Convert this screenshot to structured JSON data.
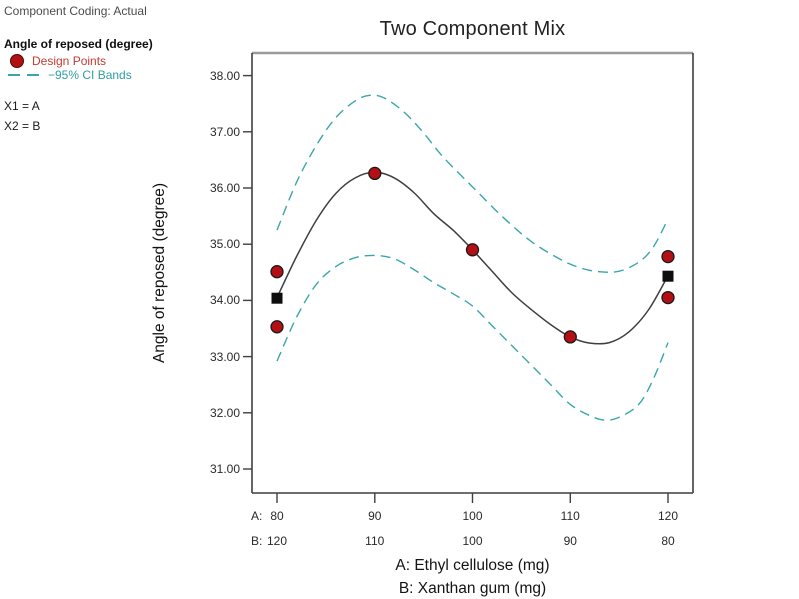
{
  "info_panel": {
    "coding_label": "Component Coding: Actual",
    "response_label": "Angle of reposed (degree)",
    "legend": {
      "design_points_label": "Design Points",
      "ci_bands_label": "−95% CI Bands"
    },
    "x1_label": "X1 = A",
    "x2_label": "X2 = B"
  },
  "chart_data": {
    "type": "line",
    "title": "Two Component Mix",
    "ylabel": "Angle of reposed (degree)",
    "xlabel_a": "A: Ethyl cellulose (mg)",
    "xlabel_b": "B: Xanthan gum (mg)",
    "y_ticks": [
      {
        "value": 38,
        "label": "38.00"
      },
      {
        "value": 37,
        "label": "37.00"
      },
      {
        "value": 36,
        "label": "36.00"
      },
      {
        "value": 35,
        "label": "35.00"
      },
      {
        "value": 34,
        "label": "34.00"
      },
      {
        "value": 33,
        "label": "33.00"
      },
      {
        "value": 32,
        "label": "32.00"
      },
      {
        "value": 31,
        "label": "31.00"
      }
    ],
    "x_ticks": [
      {
        "a": 80,
        "label_a": "80",
        "label_b": "120"
      },
      {
        "a": 90,
        "label_a": "90",
        "label_b": "110"
      },
      {
        "a": 100,
        "label_a": "100",
        "label_b": "100"
      },
      {
        "a": 110,
        "label_a": "110",
        "label_b": "90"
      },
      {
        "a": 120,
        "label_a": "120",
        "label_b": "80"
      }
    ],
    "x_prefix_a": "A:",
    "x_prefix_b": "B:",
    "x_axis_range": [
      77.4,
      122.6
    ],
    "y_axis_range": [
      30.55,
      38.4
    ],
    "design_points": [
      [
        80,
        34.51
      ],
      [
        80,
        33.53
      ],
      [
        90,
        36.26
      ],
      [
        100,
        34.9
      ],
      [
        110,
        33.35
      ],
      [
        120,
        34.78
      ],
      [
        120,
        34.05
      ]
    ],
    "edge_square_points": [
      [
        80,
        34.04
      ],
      [
        120,
        34.43
      ]
    ],
    "fit_curve": [
      [
        80,
        34.05
      ],
      [
        82,
        34.78
      ],
      [
        84,
        35.42
      ],
      [
        86,
        35.9
      ],
      [
        88,
        36.18
      ],
      [
        90,
        36.28
      ],
      [
        92,
        36.18
      ],
      [
        94,
        35.92
      ],
      [
        96,
        35.55
      ],
      [
        98,
        35.25
      ],
      [
        100,
        34.9
      ],
      [
        102,
        34.52
      ],
      [
        104,
        34.14
      ],
      [
        106,
        33.84
      ],
      [
        108,
        33.57
      ],
      [
        110,
        33.35
      ],
      [
        112,
        33.24
      ],
      [
        114,
        33.25
      ],
      [
        116,
        33.44
      ],
      [
        118,
        33.83
      ],
      [
        120,
        34.44
      ]
    ],
    "ci_upper": [
      [
        80,
        35.25
      ],
      [
        82,
        36.1
      ],
      [
        84,
        36.75
      ],
      [
        86,
        37.25
      ],
      [
        88,
        37.55
      ],
      [
        89.5,
        37.65
      ],
      [
        91,
        37.6
      ],
      [
        93,
        37.35
      ],
      [
        95,
        36.98
      ],
      [
        97,
        36.55
      ],
      [
        100,
        36.02
      ],
      [
        103,
        35.5
      ],
      [
        106,
        35.05
      ],
      [
        109,
        34.73
      ],
      [
        111,
        34.58
      ],
      [
        113,
        34.51
      ],
      [
        115,
        34.52
      ],
      [
        117,
        34.68
      ],
      [
        118.5,
        34.95
      ],
      [
        120,
        35.45
      ]
    ],
    "ci_lower": [
      [
        80,
        32.92
      ],
      [
        82,
        33.7
      ],
      [
        84,
        34.28
      ],
      [
        86,
        34.6
      ],
      [
        88,
        34.76
      ],
      [
        90,
        34.8
      ],
      [
        92,
        34.74
      ],
      [
        94,
        34.55
      ],
      [
        96,
        34.32
      ],
      [
        98,
        34.12
      ],
      [
        100,
        33.9
      ],
      [
        102,
        33.55
      ],
      [
        104,
        33.2
      ],
      [
        106,
        32.85
      ],
      [
        108,
        32.5
      ],
      [
        110,
        32.15
      ],
      [
        112,
        31.95
      ],
      [
        113.5,
        31.87
      ],
      [
        115,
        31.92
      ],
      [
        117,
        32.15
      ],
      [
        118.5,
        32.6
      ],
      [
        120,
        33.25
      ]
    ],
    "colors": {
      "design_point_fill": "#b30f15",
      "design_point_stroke": "#1a1a1a",
      "edge_square": "#0d0d0d",
      "ci_band": "#3aa6ab",
      "fit_curve": "#3f3f3f",
      "axis": "#3f3f3f",
      "top_border": "#9a9a9a"
    }
  }
}
